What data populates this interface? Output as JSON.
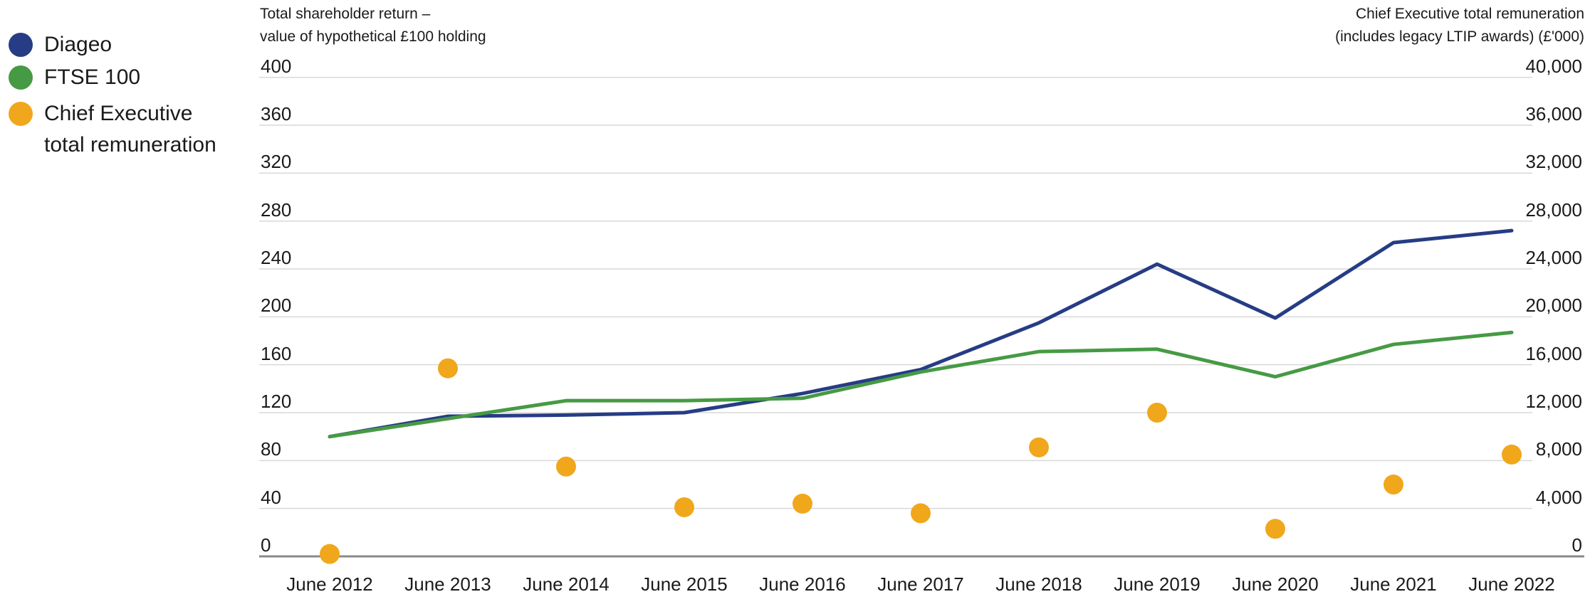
{
  "legend": {
    "items": [
      {
        "label": "Diageo"
      },
      {
        "label": "FTSE 100"
      },
      {
        "label_line1": "Chief Executive",
        "label_line2": "total remuneration"
      }
    ]
  },
  "chart_data": {
    "type": "line+scatter",
    "categories": [
      "June 2012",
      "June 2013",
      "June 2014",
      "June 2015",
      "June 2016",
      "June 2017",
      "June 2018",
      "June 2019",
      "June 2020",
      "June 2021",
      "June 2022"
    ],
    "series": [
      {
        "name": "Diageo",
        "type": "line",
        "axis": "left",
        "color": "#263C85",
        "values": [
          100,
          117,
          118,
          120,
          136,
          156,
          195,
          244,
          199,
          262,
          272
        ]
      },
      {
        "name": "FTSE 100",
        "type": "line",
        "axis": "left",
        "color": "#469A44",
        "values": [
          100,
          115,
          130,
          130,
          132,
          154,
          171,
          173,
          150,
          177,
          187
        ]
      },
      {
        "name": "Chief Executive total remuneration",
        "type": "scatter",
        "axis": "right",
        "color": "#F0A71C",
        "values": [
          200,
          15700,
          7500,
          4100,
          4400,
          3600,
          9100,
          12000,
          2300,
          6000,
          8500
        ]
      }
    ],
    "left_axis": {
      "title_line1": "Total shareholder return –",
      "title_line2": "value of hypothetical £100 holding",
      "min": 0,
      "max": 400,
      "step": 40,
      "tick_labels": [
        "400",
        "360",
        "320",
        "280",
        "240",
        "200",
        "160",
        "120",
        "80",
        "40",
        "0"
      ]
    },
    "right_axis": {
      "title_line1": "Chief Executive total remuneration",
      "title_line2": "(includes legacy LTIP awards) (£'000)",
      "min": 0,
      "max": 40000,
      "step": 4000,
      "tick_labels": [
        "40,000",
        "36,000",
        "32,000",
        "28,000",
        "24,000",
        "20,000",
        "16,000",
        "12,000",
        "8,000",
        "4,000",
        "0"
      ]
    },
    "grid": true,
    "legend_position": "top-left",
    "colors": {
      "grid": "#D9D9D9",
      "axis_line": "#8A8A8A",
      "text": "#1A1A1A"
    }
  }
}
